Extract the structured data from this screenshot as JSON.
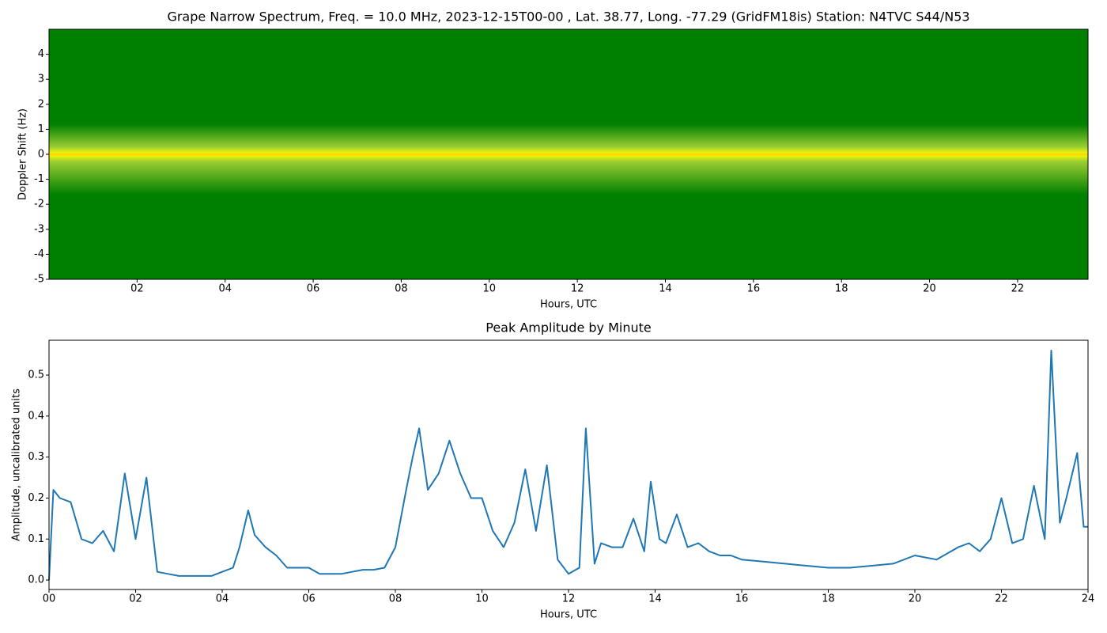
{
  "chart_data": [
    {
      "type": "spectrogram",
      "title": "Grape Narrow Spectrum, Freq. = 10.0 MHz, 2023-12-15T00-00 , Lat.  38.77, Long. -77.29 (GridFM18is) Station: N4TVC S44/N53",
      "xlabel": "Hours, UTC",
      "ylabel": "Doppler Shift (Hz)",
      "xlim": [
        0,
        23.6
      ],
      "ylim": [
        -5,
        5
      ],
      "xticks": [
        {
          "value": 2,
          "label": "02"
        },
        {
          "value": 4,
          "label": "04"
        },
        {
          "value": 6,
          "label": "06"
        },
        {
          "value": 8,
          "label": "08"
        },
        {
          "value": 10,
          "label": "10"
        },
        {
          "value": 12,
          "label": "12"
        },
        {
          "value": 14,
          "label": "14"
        },
        {
          "value": 16,
          "label": "16"
        },
        {
          "value": 18,
          "label": "18"
        },
        {
          "value": 20,
          "label": "20"
        },
        {
          "value": 22,
          "label": "22"
        }
      ],
      "yticks": [
        -5,
        -4,
        -3,
        -2,
        -1,
        0,
        1,
        2,
        3,
        4
      ]
    },
    {
      "type": "line",
      "title": "Peak Amplitude by Minute",
      "xlabel": "Hours, UTC",
      "ylabel": "Amplitude, uncalibrated units",
      "color": "#1f77b4",
      "xlim": [
        0,
        24
      ],
      "ylim": [
        -0.023,
        0.585
      ],
      "xticks": [
        {
          "value": 0,
          "label": "00"
        },
        {
          "value": 2,
          "label": "02"
        },
        {
          "value": 4,
          "label": "04"
        },
        {
          "value": 6,
          "label": "06"
        },
        {
          "value": 8,
          "label": "08"
        },
        {
          "value": 10,
          "label": "10"
        },
        {
          "value": 12,
          "label": "12"
        },
        {
          "value": 14,
          "label": "14"
        },
        {
          "value": 16,
          "label": "16"
        },
        {
          "value": 18,
          "label": "18"
        },
        {
          "value": 20,
          "label": "20"
        },
        {
          "value": 22,
          "label": "22"
        },
        {
          "value": 24,
          "label": "24"
        }
      ],
      "yticks": [
        {
          "value": 0,
          "label": "0.0"
        },
        0.1,
        0.2,
        0.3,
        0.4,
        0.5
      ],
      "x": [
        0,
        0.1,
        0.25,
        0.5,
        0.75,
        1,
        1.25,
        1.5,
        1.75,
        2,
        2.25,
        2.5,
        2.75,
        3,
        3.25,
        3.5,
        3.75,
        4,
        4.25,
        4.4,
        4.6,
        4.75,
        5,
        5.25,
        5.5,
        5.75,
        6,
        6.25,
        6.5,
        6.75,
        7,
        7.25,
        7.5,
        7.75,
        8,
        8.25,
        8.4,
        8.55,
        8.75,
        9,
        9.25,
        9.5,
        9.75,
        10,
        10.25,
        10.5,
        10.75,
        11,
        11.25,
        11.5,
        11.75,
        12,
        12.25,
        12.4,
        12.6,
        12.75,
        13,
        13.25,
        13.5,
        13.75,
        13.9,
        14.1,
        14.25,
        14.5,
        14.75,
        15,
        15.25,
        15.5,
        15.75,
        16,
        16.5,
        17,
        17.5,
        18,
        18.5,
        19,
        19.5,
        20,
        20.5,
        21,
        21.25,
        21.5,
        21.75,
        22,
        22.25,
        22.5,
        22.75,
        23,
        23.15,
        23.35,
        23.5,
        23.75,
        23.9,
        24
      ],
      "values": [
        0.0,
        0.22,
        0.2,
        0.19,
        0.1,
        0.09,
        0.12,
        0.07,
        0.26,
        0.1,
        0.25,
        0.02,
        0.015,
        0.01,
        0.01,
        0.01,
        0.01,
        0.02,
        0.03,
        0.08,
        0.17,
        0.11,
        0.08,
        0.06,
        0.03,
        0.03,
        0.03,
        0.015,
        0.015,
        0.015,
        0.02,
        0.025,
        0.025,
        0.03,
        0.08,
        0.22,
        0.3,
        0.37,
        0.22,
        0.26,
        0.34,
        0.26,
        0.2,
        0.2,
        0.12,
        0.08,
        0.14,
        0.27,
        0.12,
        0.28,
        0.05,
        0.015,
        0.03,
        0.37,
        0.04,
        0.09,
        0.08,
        0.08,
        0.15,
        0.07,
        0.24,
        0.1,
        0.09,
        0.16,
        0.08,
        0.09,
        0.07,
        0.06,
        0.06,
        0.05,
        0.045,
        0.04,
        0.035,
        0.03,
        0.03,
        0.035,
        0.04,
        0.06,
        0.05,
        0.08,
        0.09,
        0.07,
        0.1,
        0.2,
        0.09,
        0.1,
        0.23,
        0.1,
        0.56,
        0.14,
        0.2,
        0.31,
        0.13,
        0.13
      ]
    }
  ]
}
